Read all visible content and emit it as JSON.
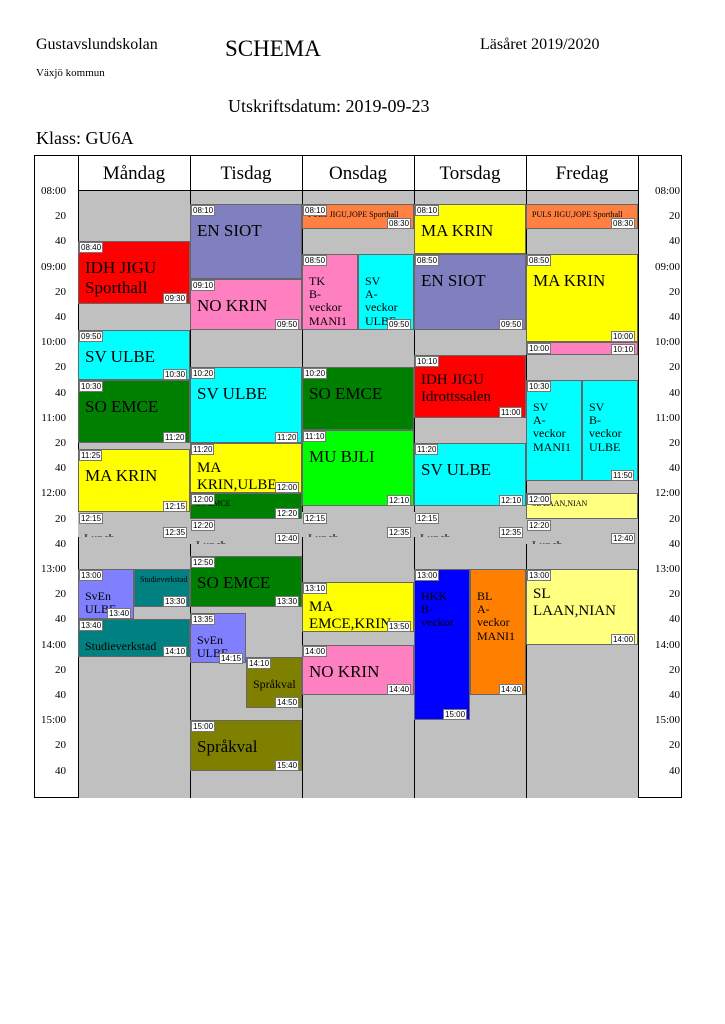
{
  "header": {
    "school": "Gustavslundskolan",
    "municipality": "Växjö kommun",
    "title": "SCHEMA",
    "school_year": "Läsåret 2019/2020",
    "print_date": "Utskriftsdatum: 2019-09-23",
    "class": "Klass: GU6A"
  },
  "days": [
    "Måndag",
    "Tisdag",
    "Onsdag",
    "Torsdag",
    "Fredag"
  ],
  "time_ticks": [
    "08:00",
    "20",
    "40",
    "09:00",
    "20",
    "40",
    "10:00",
    "20",
    "40",
    "11:00",
    "20",
    "40",
    "12:00",
    "20",
    "40",
    "13:00",
    "20",
    "40",
    "14:00",
    "20",
    "40",
    "15:00",
    "20",
    "40"
  ],
  "events": [
    {
      "day": 0,
      "start": "08:40",
      "end": "09:30",
      "label": "IDH   JIGU\nSporthall",
      "color": "#ff0000",
      "size": "big",
      "show_start": true,
      "show_end": true
    },
    {
      "day": 0,
      "start": "09:50",
      "end": "10:30",
      "label": "SV    ULBE",
      "color": "#00ffff",
      "size": "big",
      "show_start": true,
      "show_end": true
    },
    {
      "day": 0,
      "start": "10:30",
      "end": "11:20",
      "label": "SO    EMCE",
      "color": "#008000",
      "size": "big",
      "show_start": true,
      "show_end": true
    },
    {
      "day": 0,
      "start": "11:25",
      "end": "12:15",
      "label": "MA    KRIN",
      "color": "#ffff00",
      "size": "big",
      "show_start": true,
      "show_end": true
    },
    {
      "day": 0,
      "start": "12:15",
      "end": "12:35",
      "label": "Lunch",
      "color": "#c0c0c0",
      "size": "small",
      "show_start": true,
      "show_end": true
    },
    {
      "day": 0,
      "start": "13:00",
      "end": "13:40",
      "label": "SvEn\nULBE",
      "color": "#8080ff",
      "size": "small",
      "sub": 0,
      "subs": 2,
      "show_start": true,
      "show_end": true
    },
    {
      "day": 0,
      "start": "13:00",
      "end": "13:30",
      "label": "Studieverkstad",
      "color": "#008080",
      "size": "tiny",
      "sub": 1,
      "subs": 2,
      "show_start": false,
      "show_end": true
    },
    {
      "day": 0,
      "start": "13:40",
      "end": "14:10",
      "label": "Studieverkstad",
      "color": "#008080",
      "size": "small",
      "show_start": true,
      "show_end": true
    },
    {
      "day": 1,
      "start": "08:10",
      "end": "09:10",
      "label": "EN    SIOT",
      "color": "#8080c0",
      "size": "big",
      "show_start": true,
      "show_end": false
    },
    {
      "day": 1,
      "start": "09:10",
      "end": "09:50",
      "label": "NO    KRIN",
      "color": "#ff80c0",
      "size": "big",
      "show_start": true,
      "show_end": true
    },
    {
      "day": 1,
      "start": "10:20",
      "end": "11:20",
      "label": "SV    ULBE",
      "color": "#00ffff",
      "size": "big",
      "show_start": true,
      "show_end": true
    },
    {
      "day": 1,
      "start": "11:20",
      "end": "12:00",
      "label": "MA\nKRIN,ULBE",
      "color": "#ffff00",
      "size": "mid",
      "show_start": true,
      "show_end": true
    },
    {
      "day": 1,
      "start": "12:00",
      "end": "12:20",
      "label": "SO    EMCE",
      "color": "#008000",
      "size": "tiny",
      "show_start": true,
      "show_end": true
    },
    {
      "day": 1,
      "start": "12:20",
      "end": "12:40",
      "label": "Lunch",
      "color": "#c0c0c0",
      "size": "small",
      "show_start": true,
      "show_end": true
    },
    {
      "day": 1,
      "start": "12:50",
      "end": "13:30",
      "label": "SO    EMCE",
      "color": "#008000",
      "size": "big",
      "show_start": true,
      "show_end": true
    },
    {
      "day": 1,
      "start": "13:35",
      "end": "14:15",
      "label": "SvEn\nULBE",
      "color": "#8080ff",
      "size": "small",
      "sub": 0,
      "subs": 2,
      "show_start": true,
      "show_end": true
    },
    {
      "day": 1,
      "start": "14:10",
      "end": "14:50",
      "label": "Språkval",
      "color": "#808000",
      "size": "small",
      "sub": 1,
      "subs": 2,
      "show_start": true,
      "show_end": true
    },
    {
      "day": 1,
      "start": "15:00",
      "end": "15:40",
      "label": "Språkval",
      "color": "#808000",
      "size": "big",
      "show_start": true,
      "show_end": true
    },
    {
      "day": 2,
      "start": "08:10",
      "end": "08:30",
      "label": "PULS  JIGU,JOPE  Sporthall",
      "color": "#ff8040",
      "size": "tiny",
      "show_start": true,
      "show_end": true
    },
    {
      "day": 2,
      "start": "08:50",
      "end": "09:50",
      "label": "TK\nB-veckor\nMANI1",
      "color": "#ff80c0",
      "size": "small",
      "sub": 0,
      "subs": 2,
      "show_start": true,
      "show_end": false
    },
    {
      "day": 2,
      "start": "08:50",
      "end": "09:50",
      "label": "SV\nA-veckor\nULBE",
      "color": "#00ffff",
      "size": "small",
      "sub": 1,
      "subs": 2,
      "show_start": false,
      "show_end": true
    },
    {
      "day": 2,
      "start": "10:20",
      "end": "11:10",
      "label": "SO    EMCE",
      "color": "#008000",
      "size": "big",
      "show_start": true,
      "show_end": false
    },
    {
      "day": 2,
      "start": "11:10",
      "end": "12:10",
      "label": "MU    BJLI",
      "color": "#00ff00",
      "size": "big",
      "show_start": true,
      "show_end": true
    },
    {
      "day": 2,
      "start": "12:15",
      "end": "12:35",
      "label": "Lunch",
      "color": "#c0c0c0",
      "size": "small",
      "show_start": true,
      "show_end": true
    },
    {
      "day": 2,
      "start": "13:10",
      "end": "13:50",
      "label": "MA\nEMCE,KRIN",
      "color": "#ffff00",
      "size": "mid",
      "show_start": true,
      "show_end": true
    },
    {
      "day": 2,
      "start": "14:00",
      "end": "14:40",
      "label": "NO    KRIN",
      "color": "#ff80c0",
      "size": "big",
      "show_start": true,
      "show_end": true
    },
    {
      "day": 3,
      "start": "08:10",
      "end": "08:50",
      "label": "MA    KRIN",
      "color": "#ffff00",
      "size": "big",
      "show_start": true,
      "show_end": false
    },
    {
      "day": 3,
      "start": "08:50",
      "end": "09:50",
      "label": "EN    SIOT",
      "color": "#8080c0",
      "size": "big",
      "show_start": true,
      "show_end": true
    },
    {
      "day": 3,
      "start": "10:10",
      "end": "11:00",
      "label": "IDH   JIGU\nIdrottssalen",
      "color": "#ff0000",
      "size": "mid",
      "show_start": true,
      "show_end": true
    },
    {
      "day": 3,
      "start": "11:20",
      "end": "12:10",
      "label": "SV    ULBE",
      "color": "#00ffff",
      "size": "big",
      "show_start": true,
      "show_end": true
    },
    {
      "day": 3,
      "start": "12:15",
      "end": "12:35",
      "label": "Lunch",
      "color": "#c0c0c0",
      "size": "small",
      "show_start": true,
      "show_end": true
    },
    {
      "day": 3,
      "start": "13:00",
      "end": "15:00",
      "label": "HKK\nB-veckor",
      "color": "#0000ff",
      "size": "small",
      "sub": 0,
      "subs": 2,
      "show_start": true,
      "show_end": true
    },
    {
      "day": 3,
      "start": "13:00",
      "end": "14:40",
      "label": "BL\nA-veckor\nMANI1",
      "color": "#ff8000",
      "size": "small",
      "sub": 1,
      "subs": 2,
      "show_start": false,
      "show_end": true
    },
    {
      "day": 4,
      "start": "08:10",
      "end": "08:30",
      "label": "PULS  JIGU,JOPE  Sporthall",
      "color": "#ff8040",
      "size": "tiny",
      "show_start": false,
      "show_end": true
    },
    {
      "day": 4,
      "start": "08:50",
      "end": "10:00",
      "label": "MA    KRIN",
      "color": "#ffff00",
      "size": "big",
      "show_start": true,
      "show_end": true
    },
    {
      "day": 4,
      "start": "10:00",
      "end": "10:10",
      "label": "",
      "color": "#ff80c0",
      "size": "tiny",
      "show_start": true,
      "show_end": true
    },
    {
      "day": 4,
      "start": "10:30",
      "end": "11:50",
      "label": "SV\nA-veckor\nMANI1",
      "color": "#00ffff",
      "size": "small",
      "sub": 0,
      "subs": 2,
      "show_start": true,
      "show_end": false
    },
    {
      "day": 4,
      "start": "10:30",
      "end": "11:50",
      "label": "SV\nB-veckor\nULBE",
      "color": "#00ffff",
      "size": "small",
      "sub": 1,
      "subs": 2,
      "show_start": false,
      "show_end": true
    },
    {
      "day": 4,
      "start": "12:00",
      "end": "12:20",
      "label": "SL  LAAN,NIAN",
      "color": "#ffff80",
      "size": "tiny",
      "show_start": true,
      "show_end": false
    },
    {
      "day": 4,
      "start": "12:20",
      "end": "12:40",
      "label": "Lunch",
      "color": "#c0c0c0",
      "size": "small",
      "show_start": true,
      "show_end": true
    },
    {
      "day": 4,
      "start": "13:00",
      "end": "14:00",
      "label": "SL\nLAAN,NIAN",
      "color": "#ffff80",
      "size": "mid",
      "show_start": true,
      "show_end": true
    }
  ]
}
